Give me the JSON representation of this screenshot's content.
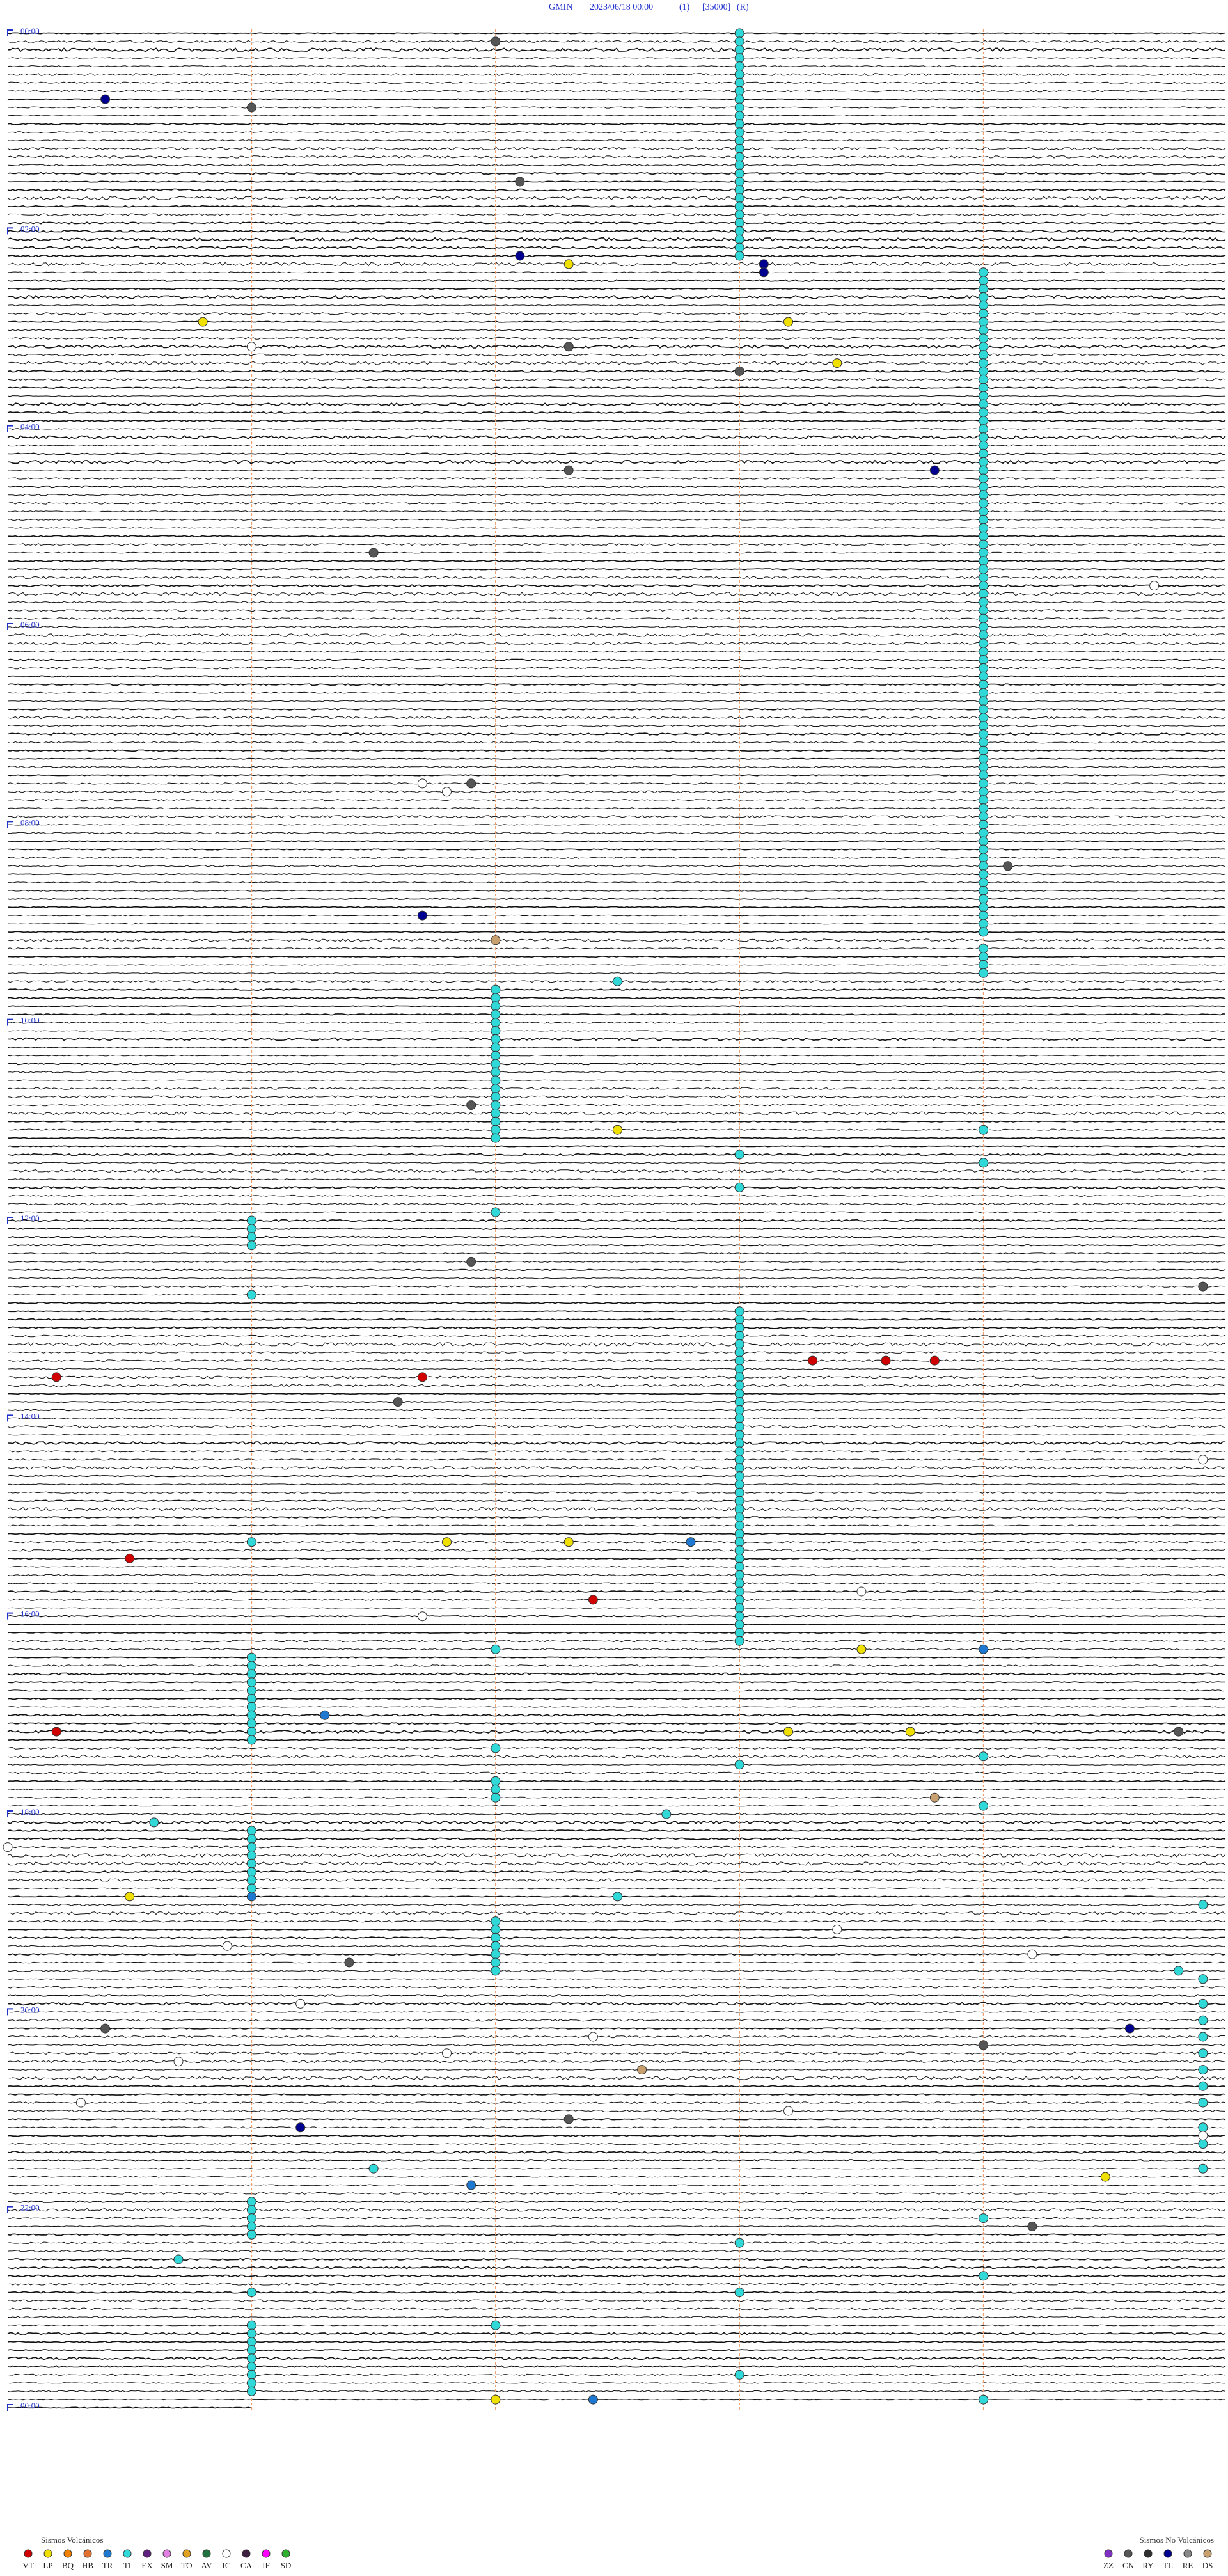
{
  "header": {
    "station": "GMIN",
    "date": "2023/06/18 00:00",
    "channel": "(1)",
    "scale": "[35000]",
    "mode": "(R)"
  },
  "chart_data": {
    "type": "helicorder",
    "xlim": [
      0,
      5
    ],
    "xticks": [
      1,
      2,
      3,
      4
    ],
    "ylim": [
      0,
      1440
    ],
    "yticks": [
      {
        "value": 0,
        "label": "00:00"
      },
      {
        "value": 120,
        "label": "02:00"
      },
      {
        "value": 240,
        "label": "04:00"
      },
      {
        "value": 360,
        "label": "06:00"
      },
      {
        "value": 480,
        "label": "08:00"
      },
      {
        "value": 600,
        "label": "10:00"
      },
      {
        "value": 720,
        "label": "12:00"
      },
      {
        "value": 840,
        "label": "14:00"
      },
      {
        "value": 960,
        "label": "16:00"
      },
      {
        "value": 1080,
        "label": "18:00"
      },
      {
        "value": 1200,
        "label": "20:00"
      },
      {
        "value": 1320,
        "label": "22:00"
      },
      {
        "value": 1440,
        "label": "00:00"
      }
    ],
    "groups": [
      {
        "title": "Sismos Volcánicos",
        "series": [
          {
            "name": "VT",
            "color": "#d00000",
            "values": [
              808.3,
              808.6,
              808.8,
              815.2,
              816.7,
              925.5,
              952.4,
              1030.2
            ]
          },
          {
            "name": "LP",
            "color": "#f0e000",
            "values": [
              142.3,
              175.8,
              178.2,
              203.4,
              667.0,
              667.5,
              916.8,
              917.3,
              983.5,
              1033.2,
              1033.7,
              1130.5,
              1304.5,
              1437.0
            ]
          },
          {
            "name": "BQ",
            "color": "#f08000",
            "values": []
          },
          {
            "name": "HB",
            "color": "#e07030",
            "values": []
          },
          {
            "name": "TR",
            "color": "#1e78d0",
            "values": [
              917.8,
              984.0,
              1021.3,
              1131.0,
              1306.9,
              1437.4
            ]
          },
          {
            "name": "TI",
            "color": "#30d8d8",
            "values": [
              3,
              8,
              13,
              18,
              23,
              28,
              33,
              38,
              43,
              48,
              53,
              58,
              63,
              68,
              73,
              78,
              83,
              88,
              93,
              98,
              103,
              108,
              113,
              118,
              123,
              128,
              133,
              138,
              149,
              154,
              159,
              164,
              169,
              174,
              179,
              184,
              189,
              194,
              199,
              204,
              209,
              214,
              219,
              224,
              229,
              234,
              239,
              244,
              249,
              254,
              259,
              264,
              269,
              274,
              279,
              284,
              289,
              294,
              299,
              304,
              309,
              314,
              319,
              324,
              329,
              334,
              339,
              344,
              349,
              354,
              359,
              364,
              369,
              374,
              379,
              384,
              389,
              394,
              399,
              404,
              409,
              414,
              419,
              424,
              429,
              434,
              439,
              444,
              449,
              454,
              459,
              464,
              469,
              474,
              479,
              484,
              489,
              494,
              499,
              504,
              509,
              514,
              519,
              524,
              529,
              534,
              539,
              544,
              549,
              559,
              564,
              569,
              574,
              577.5,
              582,
              587,
              592,
              597,
              602,
              607,
              612,
              617,
              622,
              627,
              632,
              637,
              642,
              647,
              652,
              657,
              662,
              667,
              669,
              672,
              683,
              689,
              703,
              717,
              721,
              726,
              731,
              736,
              766,
              778,
              783,
              788,
              793,
              798,
              803,
              808,
              813,
              818,
              823,
              828,
              833,
              838,
              843,
              848,
              853,
              858,
              863,
              868,
              873,
              878,
              883,
              888,
              893,
              898,
              903,
              908,
              913,
              916,
              918,
              923,
              928,
              933,
              938,
              943,
              948,
              953,
              958,
              963,
              968,
              973,
              978,
              982,
              986,
              991,
              996,
              1001,
              1006,
              1011,
              1016,
              1021,
              1026,
              1031,
              1036,
              1042,
              1049,
              1053,
              1062,
              1067,
              1072,
              1079,
              1082.7,
              1085.6,
              1091,
              1096,
              1101,
              1106,
              1111,
              1116,
              1121,
              1126,
              1132.5,
              1139.9,
              1147,
              1152,
              1157,
              1162,
              1167,
              1172,
              1177,
              1179.8,
              1184.9,
              1199.9,
              1209.9,
              1219.9,
              1229.9,
              1239.9,
              1249.9,
              1259.9,
              1274.9,
              1284.9,
              1296.5,
              1299.9,
              1316,
              1321,
              1326,
              1329,
              1331,
              1336,
              1343,
              1350.7,
              1364,
              1371,
              1373,
              1391,
              1392,
              1396,
              1401,
              1406,
              1411,
              1416,
              1421,
              1423,
              1426,
              1431,
              1439
            ]
          },
          {
            "name": "EX",
            "color": "#602080",
            "values": []
          },
          {
            "name": "SM",
            "color": "#e080e0",
            "values": []
          },
          {
            "name": "TO",
            "color": "#e0a020",
            "values": []
          },
          {
            "name": "AV",
            "color": "#207040",
            "values": []
          },
          {
            "name": "IC",
            "color": "#ffffff",
            "values": [
              191.0,
              339.7,
              456.7,
              461.8,
              869.9,
              948.5,
              961.7,
              1100.0,
              1153.4,
              1160.9,
              1169.2,
              1196.2,
              1217.4,
              1226.8,
              1230.7,
              1255.3,
              1263.2,
              1279.9
            ]
          },
          {
            "name": "CA",
            "color": "#402040",
            "values": []
          },
          {
            "name": "IF",
            "color": "#ff00ff",
            "values": []
          },
          {
            "name": "SD",
            "color": "#30b030",
            "values": []
          }
        ]
      },
      {
        "title": "Sismos No Volcánicos",
        "series": [
          {
            "name": "ZZ",
            "color": "#8030c0",
            "values": []
          },
          {
            "name": "CN",
            "color": "#555555",
            "values": [
              7.0,
              46.0,
              92.1,
              192.3,
              208.0,
              267.3,
              316.5,
              456.9,
              509.1,
              651.9,
              746.9,
              764.9,
              831.6,
              1034.8,
              1171.4,
              1210.4,
              1224.0,
              1267.3,
              1334.2
            ]
          },
          {
            "name": "RY",
            "color": "#303030",
            "values": []
          },
          {
            "name": "TL",
            "color": "#000090",
            "values": [
              40.4,
              137.1,
              143.1,
              148.1,
              268.8,
              536.7,
              1214.6,
              1271.2
            ]
          },
          {
            "name": "RE",
            "color": "#888888",
            "values": []
          },
          {
            "name": "DS",
            "color": "#c8a070",
            "values": [
              552.0,
              1073.8,
              1237.6
            ]
          }
        ]
      }
    ]
  }
}
